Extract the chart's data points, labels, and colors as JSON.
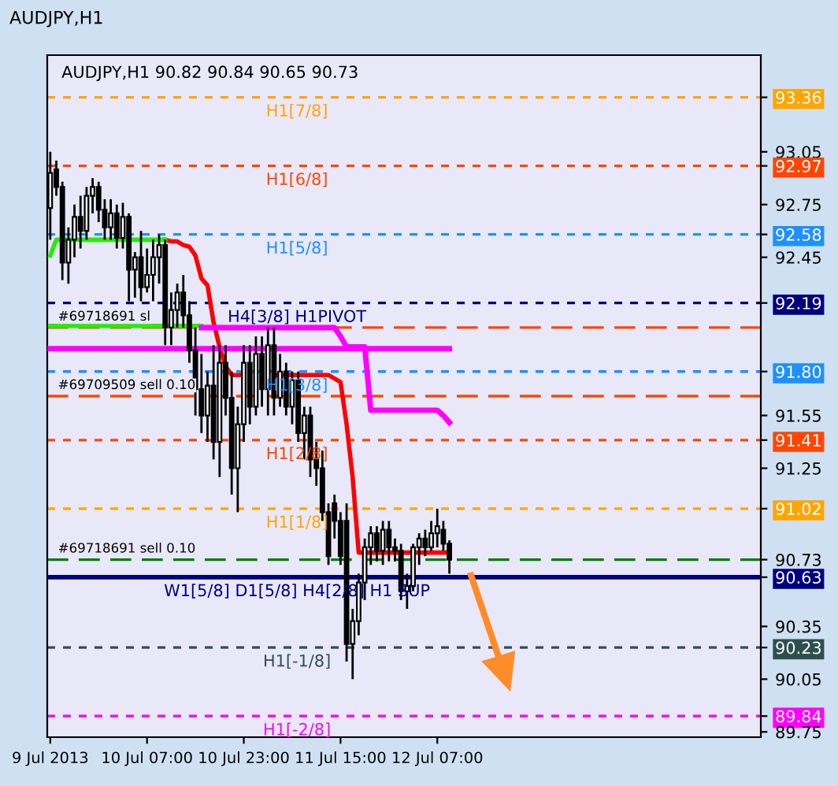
{
  "chart_data": {
    "type": "candlestick",
    "title": "AUDJPY,H1",
    "subtitle": "AUDJPY,H1 90.82 90.84 90.65 90.73",
    "categories": [
      "9 Jul 2013",
      null,
      null,
      null,
      null,
      null,
      null,
      null,
      null,
      null,
      null,
      null,
      null,
      null,
      null,
      null,
      "10 Jul 07:00",
      null,
      null,
      null,
      null,
      null,
      null,
      null,
      null,
      null,
      null,
      null,
      null,
      null,
      null,
      null,
      "10 Jul 23:00",
      null,
      null,
      null,
      null,
      null,
      null,
      null,
      null,
      null,
      null,
      null,
      null,
      null,
      null,
      null,
      "11 Jul 15:00",
      null,
      null,
      null,
      null,
      null,
      null,
      null,
      null,
      null,
      null,
      null,
      null,
      null,
      null,
      null,
      "12 Jul 07:00",
      null,
      null,
      null,
      null,
      null,
      null,
      null,
      null,
      null,
      null,
      null,
      null,
      null,
      null,
      null,
      null,
      null,
      null,
      null,
      null,
      null,
      null,
      null,
      null,
      null,
      null,
      null,
      null,
      null,
      null,
      null,
      null,
      null,
      null,
      null,
      null,
      null,
      null,
      null,
      null,
      null,
      null,
      null,
      null,
      null,
      null,
      null,
      null,
      null,
      null,
      null,
      null,
      null
    ],
    "ohlc": [
      [
        92.73,
        93.05,
        92.55,
        92.93
      ],
      [
        92.95,
        93.0,
        92.8,
        92.85
      ],
      [
        92.85,
        92.88,
        92.32,
        92.42
      ],
      [
        92.42,
        92.62,
        92.3,
        92.55
      ],
      [
        92.55,
        92.75,
        92.45,
        92.68
      ],
      [
        92.68,
        92.8,
        92.5,
        92.6
      ],
      [
        92.6,
        92.85,
        92.55,
        92.8
      ],
      [
        92.8,
        92.9,
        92.7,
        92.85
      ],
      [
        92.85,
        92.88,
        92.65,
        92.72
      ],
      [
        92.72,
        92.78,
        92.55,
        92.62
      ],
      [
        92.62,
        92.78,
        92.55,
        92.7
      ],
      [
        92.7,
        92.75,
        92.5,
        92.56
      ],
      [
        92.56,
        92.76,
        92.5,
        92.68
      ],
      [
        92.68,
        92.7,
        92.2,
        92.38
      ],
      [
        92.38,
        92.48,
        92.22,
        92.45
      ],
      [
        92.45,
        92.6,
        92.2,
        92.28
      ],
      [
        92.28,
        92.5,
        92.25,
        92.35
      ],
      [
        92.35,
        92.55,
        92.2,
        92.45
      ],
      [
        92.45,
        92.58,
        92.3,
        92.52
      ],
      [
        92.52,
        92.55,
        91.95,
        92.05
      ],
      [
        92.05,
        92.25,
        91.95,
        92.15
      ],
      [
        92.15,
        92.3,
        92.05,
        92.25
      ],
      [
        92.25,
        92.35,
        92.05,
        92.12
      ],
      [
        92.12,
        92.2,
        91.85,
        91.92
      ],
      [
        91.92,
        92.05,
        91.55,
        91.7
      ],
      [
        91.7,
        91.9,
        91.45,
        91.55
      ],
      [
        91.55,
        91.8,
        91.4,
        91.72
      ],
      [
        91.72,
        91.95,
        91.3,
        91.4
      ],
      [
        91.4,
        91.95,
        91.2,
        91.85
      ],
      [
        91.85,
        91.95,
        91.55,
        91.65
      ],
      [
        91.65,
        91.8,
        91.1,
        91.25
      ],
      [
        91.25,
        91.6,
        91.0,
        91.5
      ],
      [
        91.5,
        91.95,
        91.4,
        91.85
      ],
      [
        91.85,
        91.95,
        91.5,
        91.6
      ],
      [
        91.6,
        92.0,
        91.55,
        91.9
      ],
      [
        91.9,
        92.0,
        91.6,
        91.7
      ],
      [
        91.7,
        92.05,
        91.55,
        91.95
      ],
      [
        91.95,
        92.05,
        91.55,
        91.65
      ],
      [
        91.65,
        91.9,
        91.6,
        91.8
      ],
      [
        91.8,
        91.85,
        91.55,
        91.6
      ],
      [
        91.6,
        91.8,
        91.5,
        91.75
      ],
      [
        91.75,
        91.8,
        91.4,
        91.45
      ],
      [
        91.45,
        91.6,
        91.3,
        91.55
      ],
      [
        91.55,
        91.6,
        91.2,
        91.3
      ],
      [
        91.3,
        91.4,
        91.15,
        91.25
      ],
      [
        91.25,
        91.35,
        90.95,
        91.0
      ],
      [
        91.0,
        91.05,
        90.7,
        90.75
      ],
      [
        91.05,
        91.1,
        90.85,
        90.95
      ],
      [
        90.95,
        91.0,
        90.7,
        90.75
      ],
      [
        90.95,
        91.05,
        90.15,
        90.25
      ],
      [
        90.25,
        90.45,
        90.05,
        90.38
      ],
      [
        90.38,
        90.65,
        90.3,
        90.6
      ],
      [
        90.6,
        90.85,
        90.5,
        90.8
      ],
      [
        90.8,
        90.92,
        90.7,
        90.88
      ],
      [
        90.88,
        90.92,
        90.72,
        90.78
      ],
      [
        90.78,
        90.95,
        90.7,
        90.9
      ],
      [
        90.9,
        90.95,
        90.72,
        90.8
      ],
      [
        90.8,
        90.85,
        90.72,
        90.78
      ],
      [
        90.78,
        90.82,
        90.5,
        90.55
      ],
      [
        90.55,
        90.65,
        90.45,
        90.58
      ],
      [
        90.58,
        90.82,
        90.55,
        90.8
      ],
      [
        90.8,
        90.88,
        90.7,
        90.85
      ],
      [
        90.85,
        90.9,
        90.75,
        90.8
      ],
      [
        90.8,
        90.95,
        90.78,
        90.88
      ],
      [
        90.88,
        91.02,
        90.8,
        90.92
      ],
      [
        90.9,
        90.95,
        90.78,
        90.82
      ],
      [
        90.82,
        90.84,
        90.65,
        90.73
      ],
      null,
      null,
      null,
      null,
      null,
      null,
      null,
      null,
      null,
      null,
      null,
      null,
      null,
      null,
      null,
      null,
      null,
      null,
      null,
      null,
      null,
      null,
      null,
      null,
      null,
      null,
      null,
      null,
      null,
      null,
      null,
      null,
      null,
      null,
      null,
      null,
      null,
      null,
      null,
      null,
      null,
      null,
      null,
      null,
      null,
      null,
      null,
      null,
      null,
      null,
      null
    ],
    "series": [
      {
        "type": "line",
        "color": "#ff0000",
        "values": [
          null,
          null,
          null,
          null,
          null,
          null,
          null,
          null,
          null,
          null,
          null,
          null,
          null,
          null,
          null,
          null,
          null,
          null,
          null,
          92.55,
          92.54,
          92.54,
          92.52,
          92.51,
          92.46,
          92.33,
          92.29,
          92.08,
          91.94,
          91.83,
          91.78,
          91.78,
          91.78,
          null,
          null,
          null,
          null,
          91.78,
          91.78,
          91.78,
          91.78,
          91.78,
          91.78,
          91.78,
          91.78,
          91.78,
          91.78,
          91.76,
          91.74,
          91.5,
          91.2,
          90.77,
          90.77,
          90.77,
          90.77,
          90.77,
          90.77,
          90.77,
          90.77,
          90.77,
          90.77,
          90.77,
          90.77,
          90.77,
          90.77,
          90.77,
          90.77,
          null,
          null,
          null,
          null,
          null,
          null,
          null,
          null,
          null,
          null,
          null,
          null,
          null,
          null,
          null,
          null,
          null,
          null,
          null,
          null,
          null,
          null,
          null,
          null,
          null,
          null,
          null,
          null,
          null,
          null,
          null,
          null,
          null,
          null,
          null,
          null,
          null,
          null,
          null,
          null,
          null,
          null,
          null,
          null,
          null,
          null,
          null,
          null,
          null,
          null,
          null
        ]
      },
      {
        "type": "line",
        "color": "#22ee00",
        "values": [
          92.46,
          92.55,
          92.55,
          92.55,
          92.55,
          92.55,
          92.55,
          92.55,
          92.55,
          92.55,
          92.55,
          92.55,
          92.55,
          92.55,
          92.55,
          92.55,
          92.55,
          92.55,
          92.55,
          92.55,
          null,
          null,
          null,
          null,
          null,
          null,
          null,
          null,
          null,
          null,
          null,
          null,
          null,
          null,
          null,
          null,
          null,
          null,
          null,
          null,
          null,
          null,
          null,
          null,
          null,
          null,
          null,
          null,
          null,
          null,
          null,
          null,
          null,
          null,
          null,
          null,
          null,
          null,
          null,
          null,
          null,
          null,
          null,
          null,
          null,
          null,
          null,
          null,
          null,
          null,
          null,
          null,
          null,
          null,
          null,
          null,
          null,
          null,
          null,
          null,
          null,
          null,
          null,
          null,
          null,
          null,
          null,
          null,
          null,
          null,
          null,
          null,
          null,
          null,
          null,
          null,
          null,
          null,
          null,
          null,
          null,
          null,
          null,
          null,
          null,
          null,
          null,
          null,
          null,
          null,
          null,
          null,
          null,
          null,
          null,
          null,
          null,
          null
        ]
      },
      {
        "type": "line",
        "color": "#22ee00",
        "values": [
          92.06,
          92.06,
          92.06,
          92.06,
          92.06,
          92.06,
          92.06,
          92.06,
          92.06,
          92.06,
          92.06,
          92.06,
          92.06,
          92.06,
          92.06,
          92.06,
          92.06,
          92.06,
          92.06,
          92.06,
          92.06,
          92.06,
          92.06,
          92.06,
          92.06,
          92.06,
          null,
          null,
          null,
          null,
          null,
          null,
          null,
          null,
          null,
          null,
          null,
          null,
          null,
          null,
          null,
          null,
          null,
          null,
          null,
          null,
          null,
          null,
          null,
          null,
          null,
          null,
          null,
          null,
          null,
          null,
          null,
          null,
          null,
          null,
          null,
          null,
          null,
          null,
          null,
          null,
          null,
          null,
          null,
          null,
          null,
          null,
          null,
          null,
          null,
          null,
          null,
          null,
          null,
          null,
          null,
          null,
          null,
          null,
          null,
          null,
          null,
          null,
          null,
          null,
          null,
          null,
          null,
          null,
          null,
          null,
          null,
          null,
          null,
          null,
          null,
          null,
          null,
          null,
          null,
          null,
          null,
          null,
          null,
          null,
          null,
          null,
          null,
          null,
          null,
          null,
          null,
          null
        ]
      },
      {
        "type": "line",
        "color": "#ff00ff",
        "values": [
          91.93,
          91.93,
          91.93,
          91.93,
          91.93,
          91.93,
          91.93,
          91.93,
          91.93,
          91.93,
          91.93,
          91.93,
          91.93,
          91.93,
          91.93,
          91.93,
          91.93,
          91.93,
          91.93,
          91.93,
          91.93,
          91.93,
          91.93,
          91.93,
          91.93,
          91.93,
          91.93,
          91.93,
          91.93,
          91.93,
          91.93,
          91.93,
          91.93,
          91.93,
          91.93,
          91.93,
          91.93,
          91.93,
          91.93,
          91.93,
          91.93,
          91.93,
          91.93,
          91.93,
          91.93,
          91.93,
          91.93,
          91.93,
          91.93,
          91.93,
          91.93,
          91.93,
          91.93,
          91.93,
          91.93,
          91.93,
          91.93,
          91.93,
          91.93,
          91.93,
          91.93,
          91.93,
          91.93,
          91.93,
          91.93,
          91.93,
          91.93,
          null,
          null,
          null,
          null,
          null,
          null,
          null,
          null,
          null,
          null,
          null,
          null,
          null,
          null,
          null,
          null,
          null,
          null,
          null,
          null,
          null,
          null,
          null,
          null,
          null,
          null,
          null,
          null,
          null,
          null,
          null,
          null,
          null,
          null,
          null,
          null,
          null,
          null,
          null,
          null,
          null,
          null,
          null,
          null,
          null,
          null,
          null,
          null,
          null,
          null,
          null
        ]
      },
      {
        "type": "line",
        "color": "#ff00ff",
        "values": [
          null,
          null,
          null,
          null,
          null,
          null,
          null,
          null,
          null,
          null,
          null,
          null,
          null,
          null,
          null,
          null,
          null,
          null,
          null,
          null,
          null,
          null,
          null,
          null,
          null,
          92.05,
          92.05,
          92.05,
          92.05,
          92.05,
          92.05,
          92.05,
          92.05,
          92.05,
          92.05,
          92.05,
          92.05,
          92.05,
          92.05,
          92.05,
          92.05,
          92.05,
          92.05,
          92.05,
          92.05,
          92.05,
          92.05,
          92.05,
          92.0,
          91.94,
          91.94,
          91.94,
          91.94,
          91.58,
          91.58,
          91.58,
          91.58,
          91.58,
          91.58,
          91.58,
          91.58,
          91.58,
          91.58,
          91.58,
          91.58,
          91.55,
          91.51,
          null,
          null,
          null,
          null,
          null,
          null,
          null,
          null,
          null,
          null,
          null,
          null,
          null,
          null,
          null,
          null,
          null,
          null,
          null,
          null,
          null,
          null,
          null,
          null,
          null,
          null,
          null,
          null,
          null,
          null,
          null,
          null,
          null,
          null,
          null,
          null,
          null,
          null,
          null,
          null,
          null,
          null,
          null,
          null,
          null,
          null,
          null,
          null,
          null,
          null,
          null
        ]
      }
    ],
    "ref_lines": [
      {
        "axis": "y",
        "value": 93.36,
        "label": "H1[7/8]",
        "color": "#ffa500",
        "line_style": "dotted"
      },
      {
        "axis": "y",
        "value": 92.97,
        "label": "H1[6/8]",
        "color": "#ff4500",
        "line_style": "dotted"
      },
      {
        "axis": "y",
        "value": 92.58,
        "label": "H1[5/8]",
        "color": "#1e90ff",
        "line_style": "dotted"
      },
      {
        "axis": "y",
        "value": 92.19,
        "label": "H4[3/8] H1PIVOT",
        "color": "#000080",
        "line_style": "dotted"
      },
      {
        "axis": "y",
        "value": 92.05,
        "label": "#69718691 sl",
        "color": "#ff4500",
        "line_style": "dashed"
      },
      {
        "axis": "y",
        "value": 91.8,
        "label": "H1[3/8]",
        "color": "#1e90ff",
        "line_style": "dotted"
      },
      {
        "axis": "y",
        "value": 91.66,
        "label": "#69709509 sell 0.10",
        "color": "#ff4500",
        "line_style": "dashed"
      },
      {
        "axis": "y",
        "value": 91.41,
        "label": "H1[2/8]",
        "color": "#ff4500",
        "line_style": "dotted"
      },
      {
        "axis": "y",
        "value": 91.02,
        "label": "H1[1/8]",
        "color": "#ffa500",
        "line_style": "dotted"
      },
      {
        "axis": "y",
        "value": 90.73,
        "label": "#69718691 sell 0.10",
        "color": "#008000",
        "line_style": "dashed"
      },
      {
        "axis": "y",
        "value": 90.63,
        "label": "W1[5/8] D1[5/8] H4[2/8] H1 SUP",
        "color": "#000080",
        "line_style": "solid"
      },
      {
        "axis": "y",
        "value": 90.23,
        "label": "H1[-1/8]",
        "color": "#2f4f4f",
        "line_style": "dotted"
      },
      {
        "axis": "y",
        "value": 89.84,
        "label": "H1[-2/8]",
        "color": "#ff00ff",
        "line_style": "dotted"
      }
    ],
    "ylim": [
      89.72,
      93.6
    ],
    "yticks": [
      93.36,
      93.05,
      92.97,
      92.75,
      92.58,
      92.45,
      92.19,
      {
        "value": 91.8,
        "label": "91.80"
      },
      91.55,
      91.41,
      91.25,
      91.02,
      90.73,
      90.63,
      90.35,
      90.23,
      90.05,
      89.84,
      89.75
    ],
    "grid": false,
    "legend": false
  }
}
